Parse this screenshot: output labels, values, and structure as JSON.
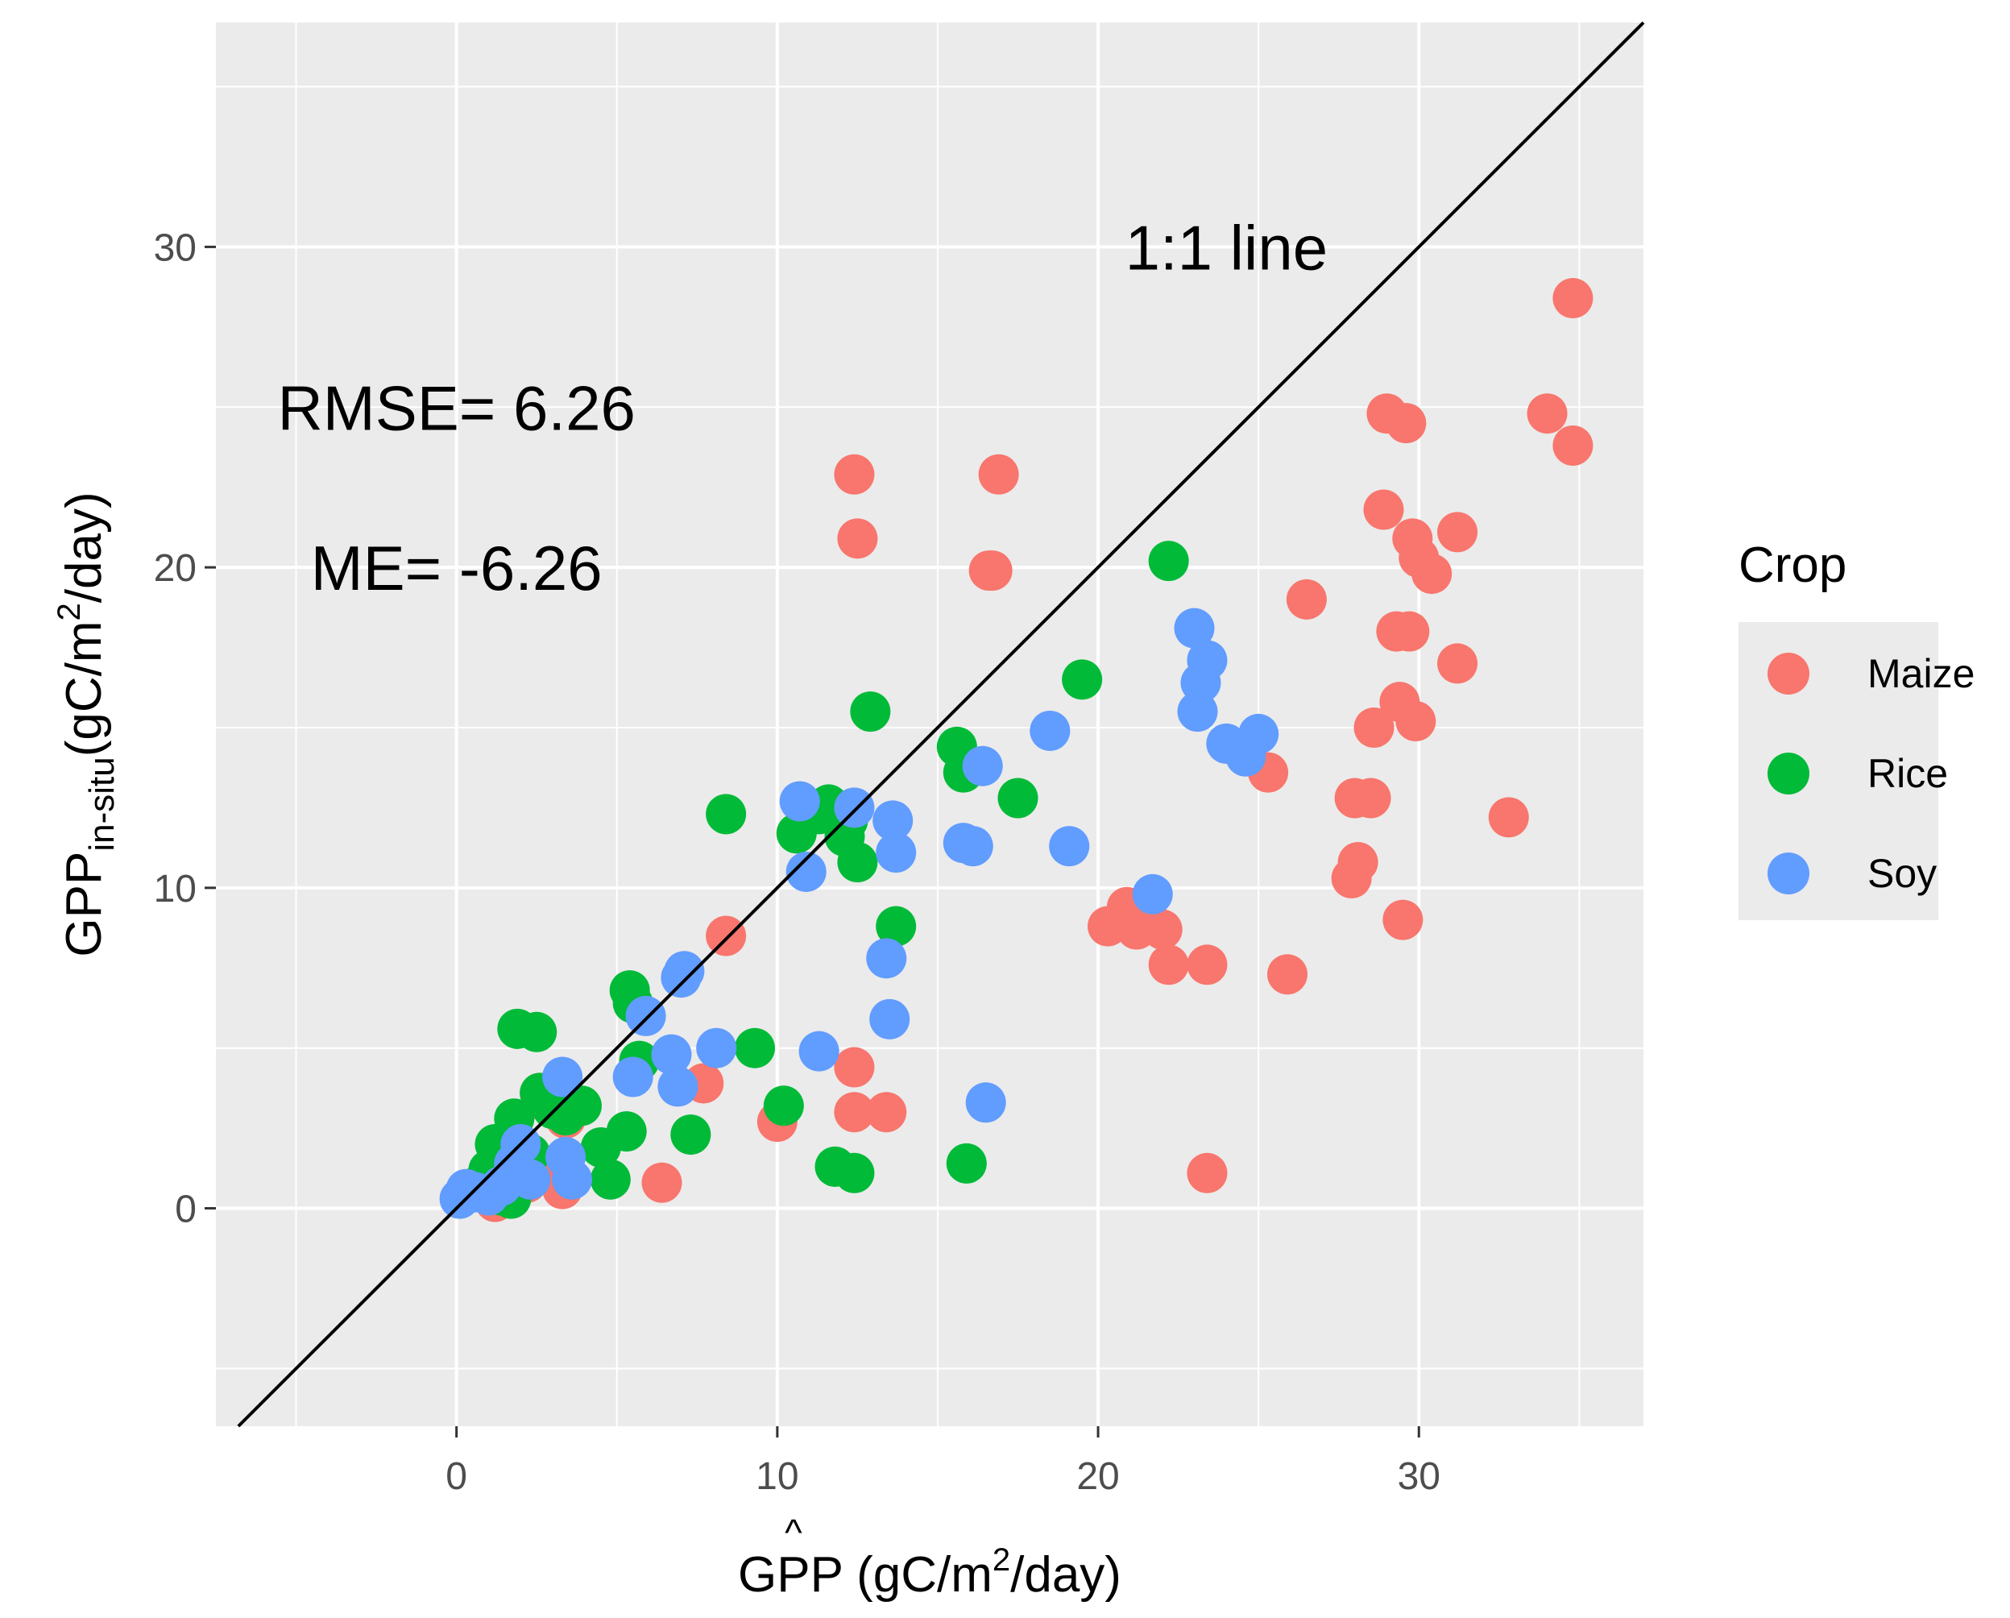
{
  "chart_data": {
    "type": "scatter",
    "title": "",
    "xlabel": {
      "base": "G",
      "hat_base": "P",
      "hat": "^",
      "rest": "P (gC/m",
      "sup": "2",
      "tail": "/day)"
    },
    "ylabel": {
      "base": "GPP",
      "sub": "in-situ",
      "open": "(gC/m",
      "sup": "2",
      "tail": "/day)"
    },
    "xlim": [
      -7.5,
      37.0
    ],
    "ylim": [
      -6.8,
      37.0
    ],
    "x_ticks": [
      0,
      10,
      20,
      30
    ],
    "y_ticks": [
      0,
      10,
      20,
      30
    ],
    "x_tick_labels": [
      "0",
      "10",
      "20",
      "30"
    ],
    "y_tick_labels": [
      "0",
      "10",
      "20",
      "30"
    ],
    "grid": true,
    "background": "#EBEBEB",
    "reference_line": {
      "label": "1:1 line",
      "slope": 1,
      "intercept": 0,
      "label_at": [
        24,
        30
      ]
    },
    "annotations": [
      {
        "text": "RMSE= 6.26",
        "x": 0,
        "y": 25
      },
      {
        "text": "ME= -6.26",
        "x": 0,
        "y": 20
      }
    ],
    "legend": {
      "title": "Crop",
      "position": "right"
    },
    "series": [
      {
        "name": "Maize",
        "color": "#F8766D",
        "points": [
          [
            0.9,
            0.6
          ],
          [
            1.2,
            0.2
          ],
          [
            1.5,
            0.4
          ],
          [
            2.2,
            0.8
          ],
          [
            2.6,
            3.6
          ],
          [
            2.8,
            3.3
          ],
          [
            3.1,
            1.1
          ],
          [
            3.3,
            0.6
          ],
          [
            3.4,
            2.8
          ],
          [
            6.4,
            0.8
          ],
          [
            7.7,
            3.9
          ],
          [
            8.4,
            8.5
          ],
          [
            10.0,
            2.7
          ],
          [
            12.4,
            4.4
          ],
          [
            12.4,
            3.0
          ],
          [
            13.4,
            3.0
          ],
          [
            12.4,
            22.9
          ],
          [
            12.5,
            20.9
          ],
          [
            16.6,
            19.9
          ],
          [
            16.7,
            19.9
          ],
          [
            16.9,
            22.9
          ],
          [
            20.3,
            8.8
          ],
          [
            20.9,
            9.4
          ],
          [
            21.2,
            8.7
          ],
          [
            21.5,
            9.3
          ],
          [
            22.0,
            8.7
          ],
          [
            22.2,
            7.6
          ],
          [
            23.4,
            7.6
          ],
          [
            23.4,
            1.1
          ],
          [
            25.3,
            13.6
          ],
          [
            25.9,
            7.3
          ],
          [
            26.5,
            19.0
          ],
          [
            27.9,
            10.3
          ],
          [
            28.0,
            12.8
          ],
          [
            28.1,
            10.8
          ],
          [
            28.5,
            12.8
          ],
          [
            28.6,
            15.0
          ],
          [
            28.9,
            21.8
          ],
          [
            29.0,
            24.8
          ],
          [
            29.3,
            18.0
          ],
          [
            29.4,
            15.8
          ],
          [
            29.5,
            9.0
          ],
          [
            29.6,
            24.5
          ],
          [
            29.7,
            18.0
          ],
          [
            29.8,
            20.9
          ],
          [
            29.9,
            15.2
          ],
          [
            30.0,
            20.3
          ],
          [
            30.4,
            19.8
          ],
          [
            31.2,
            17.0
          ],
          [
            31.2,
            21.1
          ],
          [
            32.8,
            12.2
          ],
          [
            34.0,
            24.8
          ],
          [
            34.8,
            23.8
          ],
          [
            34.8,
            28.4
          ]
        ]
      },
      {
        "name": "Rice",
        "color": "#00BA38",
        "points": [
          [
            0.5,
            0.5
          ],
          [
            0.8,
            0.8
          ],
          [
            1.0,
            1.2
          ],
          [
            1.2,
            2.0
          ],
          [
            1.4,
            0.4
          ],
          [
            1.7,
            0.3
          ],
          [
            1.8,
            2.8
          ],
          [
            1.9,
            5.6
          ],
          [
            2.0,
            0.8
          ],
          [
            2.3,
            1.7
          ],
          [
            2.5,
            5.5
          ],
          [
            2.6,
            3.6
          ],
          [
            3.0,
            3.1
          ],
          [
            3.4,
            2.9
          ],
          [
            3.9,
            3.2
          ],
          [
            4.5,
            1.9
          ],
          [
            4.8,
            0.9
          ],
          [
            5.3,
            2.4
          ],
          [
            5.4,
            6.8
          ],
          [
            5.5,
            6.4
          ],
          [
            5.7,
            4.6
          ],
          [
            7.3,
            2.3
          ],
          [
            8.4,
            12.3
          ],
          [
            9.3,
            5.0
          ],
          [
            10.2,
            3.2
          ],
          [
            10.6,
            11.7
          ],
          [
            11.3,
            12.3
          ],
          [
            11.6,
            12.6
          ],
          [
            11.8,
            1.3
          ],
          [
            12.1,
            11.6
          ],
          [
            12.2,
            12.1
          ],
          [
            12.4,
            1.1
          ],
          [
            12.5,
            10.8
          ],
          [
            12.9,
            15.5
          ],
          [
            13.7,
            8.8
          ],
          [
            15.6,
            14.4
          ],
          [
            15.8,
            13.6
          ],
          [
            15.9,
            1.4
          ],
          [
            17.5,
            12.8
          ],
          [
            19.5,
            16.5
          ],
          [
            22.2,
            20.2
          ]
        ]
      },
      {
        "name": "Soy",
        "color": "#619CFF",
        "points": [
          [
            0.1,
            0.3
          ],
          [
            0.3,
            0.6
          ],
          [
            0.6,
            0.5
          ],
          [
            1.0,
            0.4
          ],
          [
            1.4,
            0.7
          ],
          [
            1.8,
            1.4
          ],
          [
            2.0,
            2.0
          ],
          [
            2.3,
            0.9
          ],
          [
            3.3,
            4.1
          ],
          [
            3.4,
            1.6
          ],
          [
            3.6,
            0.9
          ],
          [
            5.5,
            4.1
          ],
          [
            5.9,
            6.0
          ],
          [
            6.7,
            4.8
          ],
          [
            6.9,
            3.8
          ],
          [
            7.0,
            7.2
          ],
          [
            7.1,
            7.4
          ],
          [
            8.1,
            5.0
          ],
          [
            10.7,
            12.7
          ],
          [
            10.9,
            10.5
          ],
          [
            11.3,
            4.9
          ],
          [
            12.4,
            12.5
          ],
          [
            13.4,
            7.8
          ],
          [
            13.5,
            5.9
          ],
          [
            13.6,
            12.1
          ],
          [
            13.7,
            11.1
          ],
          [
            15.8,
            11.4
          ],
          [
            16.1,
            11.3
          ],
          [
            16.4,
            13.8
          ],
          [
            16.5,
            3.3
          ],
          [
            18.5,
            14.9
          ],
          [
            19.1,
            11.3
          ],
          [
            21.7,
            9.8
          ],
          [
            23.0,
            18.1
          ],
          [
            23.1,
            15.5
          ],
          [
            23.2,
            16.4
          ],
          [
            23.4,
            17.1
          ],
          [
            24.0,
            14.5
          ],
          [
            24.6,
            14.1
          ],
          [
            25.0,
            14.8
          ]
        ]
      }
    ]
  }
}
